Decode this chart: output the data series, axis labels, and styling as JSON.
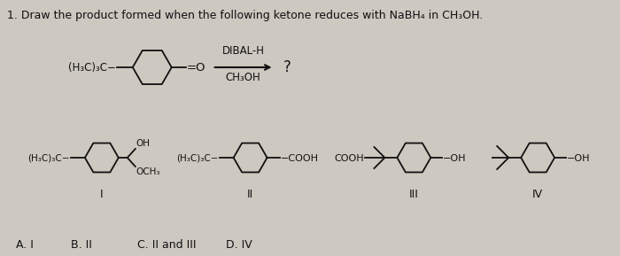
{
  "title": "1. Draw the product formed when the following ketone reduces with NaBH₄ in CH₃OH.",
  "bg_color": "#cdc8c0",
  "text_color": "#111111",
  "dibal": "DIBAL-H",
  "ch3oh": "CH₃OH",
  "question_mark": "?",
  "struct_I_label": "I",
  "struct_II_label": "II",
  "struct_III_label": "III",
  "struct_IV_label": "IV",
  "answers": [
    "A. I",
    "B. II",
    "C. II and III",
    "D. IV"
  ]
}
